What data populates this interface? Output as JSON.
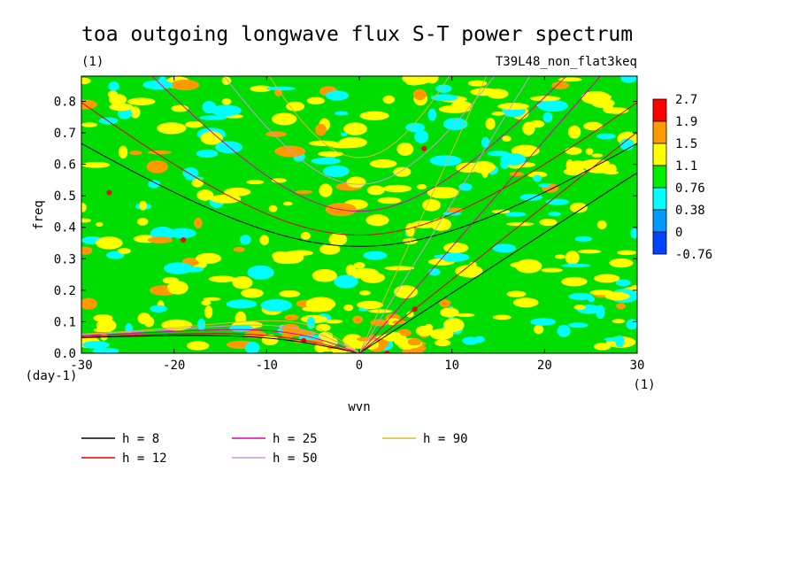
{
  "chart_data": {
    "type": "heatmap",
    "title": "toa outgoing longwave flux S-T power spectrum",
    "subtitle_left": "(1)",
    "subtitle_right": "T39L48_non_flat3keq",
    "xlabel": "wvn",
    "ylabel": "freq",
    "x_unit": "(1)",
    "y_unit": "(day-1)",
    "xlim": [
      -30,
      30
    ],
    "ylim": [
      0,
      0.88
    ],
    "xticks": [
      -30,
      -20,
      -10,
      0,
      10,
      20,
      30
    ],
    "xtick_labels": [
      "-30",
      "-20",
      "-10",
      "0",
      "10",
      "20",
      "30"
    ],
    "yticks": [
      0.0,
      0.1,
      0.2,
      0.3,
      0.4,
      0.5,
      0.6,
      0.7,
      0.8
    ],
    "ytick_labels": [
      "0.0",
      "0.1",
      "0.2",
      "0.3",
      "0.4",
      "0.5",
      "0.6",
      "0.7",
      "0.8"
    ],
    "colorbar": {
      "labels": [
        "2.7",
        "1.9",
        "1.5",
        "1.1",
        "0.76",
        "0.38",
        "0",
        "-0.76"
      ],
      "colors": [
        "#ff0000",
        "#ff9900",
        "#ffff00",
        "#00ee00",
        "#00ffff",
        "#0099ff",
        "#0044ff"
      ]
    },
    "field_colors": {
      "background": "#00dd00",
      "levels": [
        "#00ffff",
        "#ffff00",
        "#ff9900",
        "#ff0000"
      ]
    },
    "dispersion_curves": [
      {
        "label": "h =  8",
        "h": 8,
        "color": "#000000"
      },
      {
        "label": "h = 12",
        "h": 12,
        "color": "#dd0000"
      },
      {
        "label": "h = 25",
        "h": 25,
        "color": "#dd00aa"
      },
      {
        "label": "h = 50",
        "h": 50,
        "color": "#cc99dd"
      },
      {
        "label": "h = 90",
        "h": 90,
        "color": "#ddbb22"
      }
    ]
  }
}
